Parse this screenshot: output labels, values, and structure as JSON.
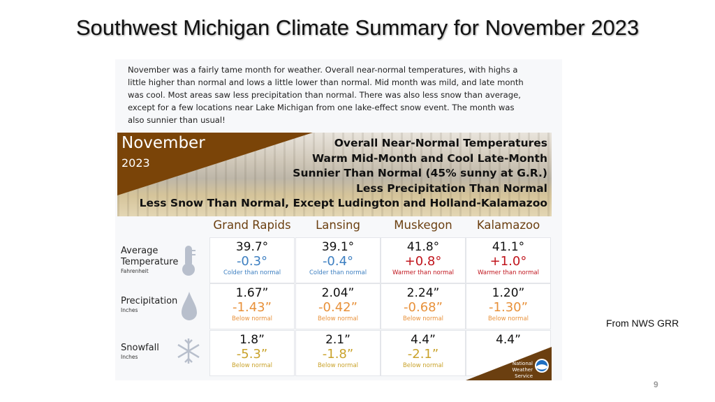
{
  "slide": {
    "title": "Southwest Michigan Climate Summary for November 2023",
    "source": "From NWS GRR",
    "page_number": "9"
  },
  "intro": {
    "lines": [
      "November was a fairly tame month for weather. Overall near-normal temperatures, with highs a",
      "little higher than normal and lows a little lower than normal. Mid month was mild, and late month",
      "was cool. Most areas saw less precipitation than normal. There was also less snow than average,",
      "except for a few locations near Lake Michigan from one lake-effect snow event. The month was",
      "also sunnier than usual!"
    ]
  },
  "banner": {
    "month": "November",
    "year": "2023",
    "headlines": [
      "Overall Near-Normal Temperatures",
      "Warm Mid-Month and Cool Late-Month",
      "Sunnier Than Normal (45% sunny at G.R.)",
      "Less Precipitation Than Normal",
      "Less Snow Than Normal, Except Ludington and Holland-Kalamazoo"
    ]
  },
  "colors": {
    "brown": "#7a4408",
    "colder": "#3d7fc1",
    "warmer": "#c0141c",
    "precip_below": "#e8913a",
    "snow_below": "#c9a22a"
  },
  "table": {
    "columns": [
      "Grand Rapids",
      "Lansing",
      "Muskegon",
      "Kalamazoo"
    ],
    "rows": [
      {
        "label": "Average",
        "label2": "Temperature",
        "unit": "Fahrenheit",
        "icon": "thermometer-icon",
        "cells": [
          {
            "value": "39.7°",
            "delta": "-0.3°",
            "note": "Colder than normal",
            "tone": "colder"
          },
          {
            "value": "39.1°",
            "delta": "-0.4°",
            "note": "Colder than normal",
            "tone": "colder"
          },
          {
            "value": "41.8°",
            "delta": "+0.8°",
            "note": "Warmer than normal",
            "tone": "warmer"
          },
          {
            "value": "41.1°",
            "delta": "+1.0°",
            "note": "Warmer than normal",
            "tone": "warmer"
          }
        ]
      },
      {
        "label": "Precipitation",
        "label2": "",
        "unit": "Inches",
        "icon": "raindrop-icon",
        "cells": [
          {
            "value": "1.67”",
            "delta": "-1.43”",
            "note": "Below normal",
            "tone": "precip_below"
          },
          {
            "value": "2.04”",
            "delta": "-0.42”",
            "note": "Below normal",
            "tone": "precip_below"
          },
          {
            "value": "2.24”",
            "delta": "-0.68”",
            "note": "Below normal",
            "tone": "precip_below"
          },
          {
            "value": "1.20”",
            "delta": "-1.30”",
            "note": "Below normal",
            "tone": "precip_below"
          }
        ]
      },
      {
        "label": "Snowfall",
        "label2": "",
        "unit": "Inches",
        "icon": "snowflake-icon",
        "cells": [
          {
            "value": "1.8”",
            "delta": "-5.3”",
            "note": "Below normal",
            "tone": "snow_below"
          },
          {
            "value": "2.1”",
            "delta": "-1.8”",
            "note": "Below normal",
            "tone": "snow_below"
          },
          {
            "value": "4.4”",
            "delta": "-2.1”",
            "note": "Below normal",
            "tone": "snow_below"
          },
          {
            "value": "4.4”",
            "delta": "",
            "note": "",
            "tone": "snow_below"
          }
        ]
      }
    ]
  },
  "logo": {
    "line1": "National",
    "line2": "Weather Service"
  }
}
